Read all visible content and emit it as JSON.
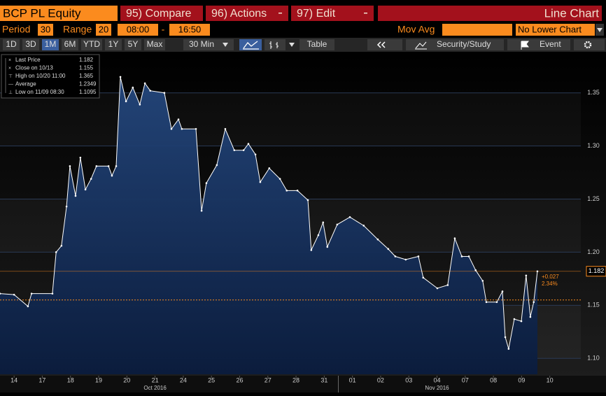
{
  "header": {
    "ticker": "BCP PL Equity",
    "buttons": [
      "95) Compare",
      "96) Actions",
      "97) Edit"
    ],
    "view": "Line Chart"
  },
  "settings": {
    "period_label": "Period",
    "period": "30",
    "range_label": "Range",
    "range": "20",
    "start": "08:00",
    "separator": "-",
    "end": "16:50",
    "mov_avg": "Mov Avg",
    "lower": "No Lower Chart"
  },
  "toolbar": {
    "ranges": [
      "1D",
      "3D",
      "1M",
      "6M",
      "YTD",
      "1Y",
      "5Y",
      "Max"
    ],
    "active": "1M",
    "interval": "30 Min",
    "table": "Table",
    "study": "Security/Study",
    "event": "Event"
  },
  "chart_data": {
    "type": "line",
    "series": [
      {
        "name": "Last Price",
        "color": "#ffffff",
        "values": [
          1.161,
          1.16,
          1.149,
          1.161,
          1.161,
          1.2,
          1.206,
          1.243,
          1.281,
          1.253,
          1.289,
          1.259,
          1.269,
          1.281,
          1.281,
          1.272,
          1.281,
          1.365,
          1.342,
          1.355,
          1.339,
          1.359,
          1.352,
          1.35,
          1.316,
          1.325,
          1.316,
          1.316,
          1.239,
          1.265,
          1.282,
          1.316,
          1.296,
          1.296,
          1.302,
          1.292,
          1.266,
          1.279,
          1.269,
          1.258,
          1.258,
          1.249,
          1.202,
          1.216,
          1.228,
          1.205,
          1.226,
          1.233,
          1.225,
          1.212,
          1.203,
          1.196,
          1.193,
          1.196,
          1.176,
          1.166,
          1.169,
          1.213,
          1.196,
          1.196,
          1.183,
          1.173,
          1.153,
          1.153,
          1.163,
          1.12,
          1.109,
          1.137,
          1.135,
          1.178,
          1.139,
          1.153,
          1.182
        ]
      }
    ],
    "x": [
      0,
      0.5,
      0.99,
      1.12,
      1.86,
      1.99,
      2.18,
      2.36,
      2.48,
      2.68,
      2.85,
      3.03,
      3.23,
      3.42,
      3.85,
      3.97,
      4.12,
      4.27,
      4.47,
      4.71,
      4.96,
      5.14,
      5.33,
      5.83,
      6.08,
      6.33,
      6.45,
      6.95,
      7.15,
      7.32,
      7.69,
      7.99,
      8.31,
      8.64,
      8.81,
      9.06,
      9.23,
      9.55,
      9.93,
      10.17,
      10.55,
      10.92,
      11.04,
      11.29,
      11.46,
      11.61,
      11.96,
      12.41,
      12.9,
      13.4,
      13.77,
      14.02,
      14.39,
      14.84,
      15.01,
      15.51,
      15.88,
      16.13,
      16.38,
      16.63,
      16.87,
      17.12,
      17.25,
      17.62,
      17.82,
      17.92,
      18.04,
      18.24,
      18.49,
      18.66,
      18.81,
      18.93,
      19.06
    ],
    "xlim": [
      0,
      20.6
    ],
    "xticks": [
      {
        "value": 0.5,
        "label": "14"
      },
      {
        "value": 1.5,
        "label": "17"
      },
      {
        "value": 2.5,
        "label": "18"
      },
      {
        "value": 3.5,
        "label": "19"
      },
      {
        "value": 4.5,
        "label": "20"
      },
      {
        "value": 5.5,
        "label": "21"
      },
      {
        "value": 6.5,
        "label": "24"
      },
      {
        "value": 7.5,
        "label": "25"
      },
      {
        "value": 8.5,
        "label": "26"
      },
      {
        "value": 9.5,
        "label": "27"
      },
      {
        "value": 10.5,
        "label": "28"
      },
      {
        "value": 11.5,
        "label": "31"
      },
      {
        "value": 12.5,
        "label": "01"
      },
      {
        "value": 13.5,
        "label": "02"
      },
      {
        "value": 14.5,
        "label": "03"
      },
      {
        "value": 15.5,
        "label": "04"
      },
      {
        "value": 16.5,
        "label": "07"
      },
      {
        "value": 17.5,
        "label": "08"
      },
      {
        "value": 18.5,
        "label": "09"
      },
      {
        "value": 19.5,
        "label": "10"
      }
    ],
    "month_labels": [
      {
        "value": 5.5,
        "label": "Oct 2016"
      },
      {
        "value": 15.5,
        "label": "Nov 2016"
      }
    ],
    "ylim": [
      1.085,
      1.388
    ],
    "yticks": [
      {
        "value": 1.1,
        "label": "1.10"
      },
      1.15,
      {
        "value": 1.2,
        "label": "1.20"
      },
      1.25,
      {
        "value": 1.3,
        "label": "1.30"
      },
      1.35
    ],
    "legend": [
      {
        "label": "Last Price",
        "value": 1.182
      },
      {
        "label": "Close on 10/13",
        "value": 1.155
      },
      {
        "label": "High on 10/20 11:00",
        "value": 1.365
      },
      {
        "label": "Average",
        "value": 1.2349
      },
      {
        "label": "Low on 11/09 08:30",
        "value": 1.1095
      }
    ],
    "change": {
      "value": 0.027,
      "label": "+0.027"
    },
    "change_pct": {
      "value": 2.34,
      "label": "2.34%"
    }
  }
}
